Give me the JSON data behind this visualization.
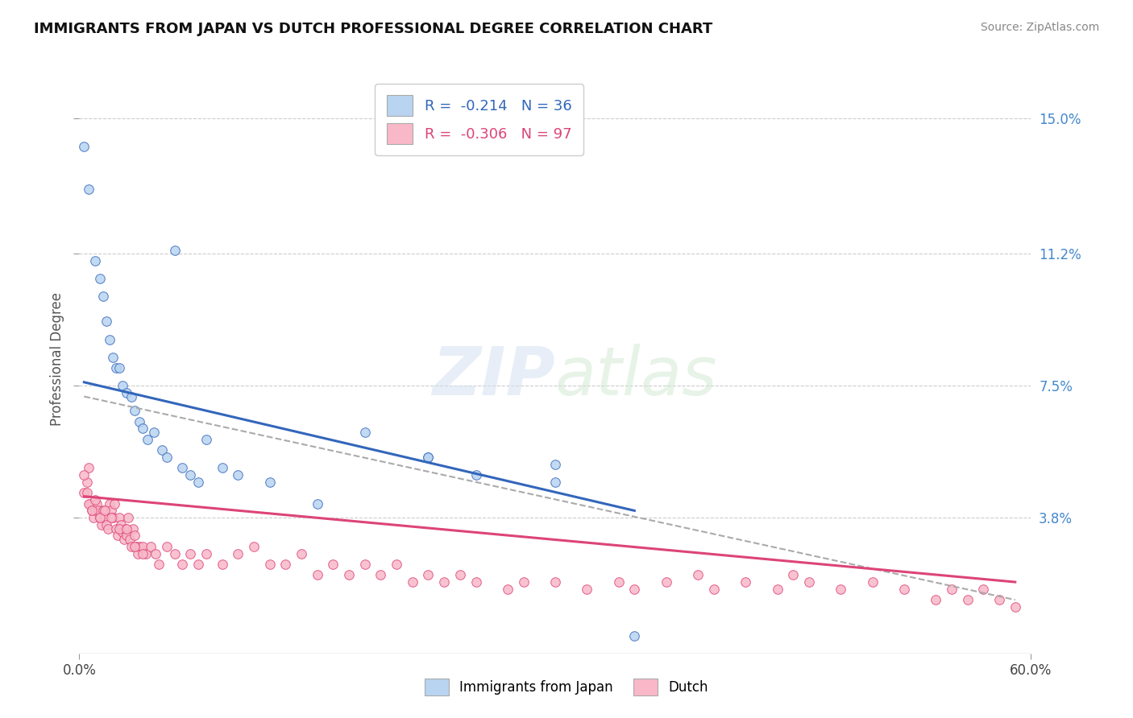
{
  "title": "IMMIGRANTS FROM JAPAN VS DUTCH PROFESSIONAL DEGREE CORRELATION CHART",
  "source": "Source: ZipAtlas.com",
  "ylabel": "Professional Degree",
  "legend_labels": [
    "Immigrants from Japan",
    "Dutch"
  ],
  "R_japan": -0.214,
  "N_japan": 36,
  "R_dutch": -0.306,
  "N_dutch": 97,
  "xlim": [
    0.0,
    0.6
  ],
  "ylim": [
    0.0,
    0.165
  ],
  "yticks": [
    0.038,
    0.075,
    0.112,
    0.15
  ],
  "ytick_labels": [
    "3.8%",
    "7.5%",
    "11.2%",
    "15.0%"
  ],
  "xtick_positions": [
    0.0,
    0.6
  ],
  "xtick_labels": [
    "0.0%",
    "60.0%"
  ],
  "color_japan": "#b8d4f0",
  "color_dutch": "#f8b8c8",
  "line_color_japan": "#3366bb",
  "line_color_dutch": "#dd4477",
  "line_color_dashed": "#aaaaaa",
  "background_color": "#ffffff",
  "japan_x": [
    0.003,
    0.006,
    0.01,
    0.013,
    0.015,
    0.017,
    0.019,
    0.021,
    0.023,
    0.025,
    0.027,
    0.03,
    0.033,
    0.035,
    0.038,
    0.04,
    0.043,
    0.047,
    0.052,
    0.055,
    0.06,
    0.065,
    0.07,
    0.075,
    0.08,
    0.09,
    0.1,
    0.12,
    0.15,
    0.18,
    0.22,
    0.25,
    0.3,
    0.35,
    0.22,
    0.3
  ],
  "japan_y": [
    0.142,
    0.13,
    0.11,
    0.105,
    0.1,
    0.093,
    0.088,
    0.083,
    0.08,
    0.08,
    0.075,
    0.073,
    0.072,
    0.068,
    0.065,
    0.063,
    0.06,
    0.062,
    0.057,
    0.055,
    0.113,
    0.052,
    0.05,
    0.048,
    0.06,
    0.052,
    0.05,
    0.048,
    0.042,
    0.062,
    0.055,
    0.05,
    0.053,
    0.005,
    0.055,
    0.048
  ],
  "dutch_x": [
    0.003,
    0.005,
    0.006,
    0.007,
    0.008,
    0.009,
    0.01,
    0.011,
    0.012,
    0.013,
    0.014,
    0.015,
    0.016,
    0.017,
    0.018,
    0.019,
    0.02,
    0.021,
    0.022,
    0.023,
    0.024,
    0.025,
    0.026,
    0.027,
    0.028,
    0.029,
    0.03,
    0.031,
    0.032,
    0.033,
    0.034,
    0.035,
    0.036,
    0.037,
    0.038,
    0.04,
    0.042,
    0.045,
    0.048,
    0.05,
    0.055,
    0.06,
    0.065,
    0.07,
    0.075,
    0.08,
    0.09,
    0.1,
    0.11,
    0.12,
    0.13,
    0.14,
    0.15,
    0.16,
    0.17,
    0.18,
    0.19,
    0.2,
    0.21,
    0.22,
    0.23,
    0.24,
    0.25,
    0.27,
    0.28,
    0.3,
    0.32,
    0.34,
    0.35,
    0.37,
    0.39,
    0.4,
    0.42,
    0.44,
    0.45,
    0.46,
    0.48,
    0.5,
    0.52,
    0.54,
    0.55,
    0.56,
    0.57,
    0.58,
    0.59,
    0.003,
    0.005,
    0.006,
    0.008,
    0.01,
    0.013,
    0.016,
    0.02,
    0.025,
    0.03,
    0.035,
    0.04
  ],
  "dutch_y": [
    0.045,
    0.048,
    0.052,
    0.042,
    0.04,
    0.038,
    0.04,
    0.042,
    0.04,
    0.038,
    0.036,
    0.04,
    0.038,
    0.036,
    0.035,
    0.042,
    0.04,
    0.038,
    0.042,
    0.035,
    0.033,
    0.038,
    0.036,
    0.034,
    0.032,
    0.035,
    0.033,
    0.038,
    0.032,
    0.03,
    0.035,
    0.033,
    0.03,
    0.028,
    0.03,
    0.03,
    0.028,
    0.03,
    0.028,
    0.025,
    0.03,
    0.028,
    0.025,
    0.028,
    0.025,
    0.028,
    0.025,
    0.028,
    0.03,
    0.025,
    0.025,
    0.028,
    0.022,
    0.025,
    0.022,
    0.025,
    0.022,
    0.025,
    0.02,
    0.022,
    0.02,
    0.022,
    0.02,
    0.018,
    0.02,
    0.02,
    0.018,
    0.02,
    0.018,
    0.02,
    0.022,
    0.018,
    0.02,
    0.018,
    0.022,
    0.02,
    0.018,
    0.02,
    0.018,
    0.015,
    0.018,
    0.015,
    0.018,
    0.015,
    0.013,
    0.05,
    0.045,
    0.042,
    0.04,
    0.043,
    0.038,
    0.04,
    0.038,
    0.035,
    0.035,
    0.03,
    0.028
  ],
  "japan_line_x": [
    0.003,
    0.35
  ],
  "japan_line_y": [
    0.076,
    0.04
  ],
  "dutch_line_x": [
    0.003,
    0.59
  ],
  "dutch_line_y": [
    0.044,
    0.02
  ],
  "dashed_line_x": [
    0.003,
    0.59
  ],
  "dashed_line_y": [
    0.072,
    0.015
  ]
}
